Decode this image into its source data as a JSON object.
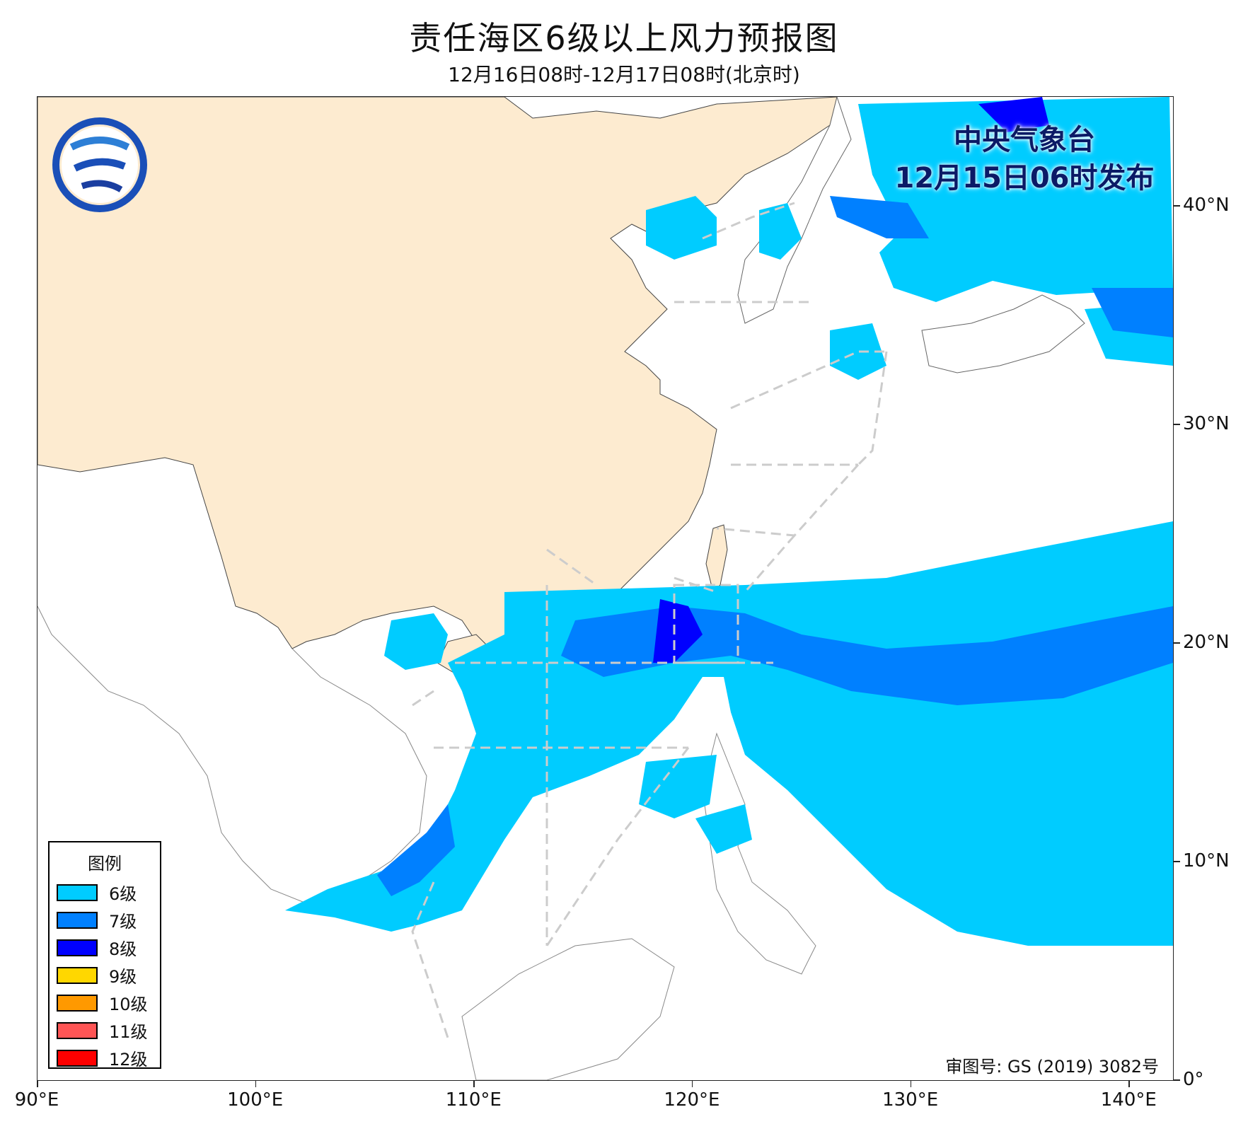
{
  "header": {
    "title": "责任海区6级以上风力预报图",
    "subtitle": "12月16日08时-12月17日08时(北京时)"
  },
  "publisher": {
    "line1": "中央气象台",
    "line2": "12月15日06时发布"
  },
  "logo": {
    "icon": "cma-logo-icon"
  },
  "legend": {
    "title": "图例",
    "items": [
      {
        "label": "6级",
        "color": "#00ccff"
      },
      {
        "label": "7级",
        "color": "#0080ff"
      },
      {
        "label": "8级",
        "color": "#0000ff"
      },
      {
        "label": "9级",
        "color": "#ffd700"
      },
      {
        "label": "10级",
        "color": "#ff9900"
      },
      {
        "label": "11级",
        "color": "#ff5555"
      },
      {
        "label": "12级",
        "color": "#ff0000"
      }
    ]
  },
  "review_number": "审图号: GS (2019) 3082号",
  "axes": {
    "x_ticks": [
      "90°E",
      "100°E",
      "110°E",
      "120°E",
      "130°E",
      "140°E"
    ],
    "y_ticks": [
      "40°N",
      "30°N",
      "20°N",
      "10°N",
      "0°"
    ],
    "x_range": [
      90,
      142
    ],
    "y_range": [
      0,
      45
    ]
  },
  "colors": {
    "land_china": "#fdebd0",
    "sea": "#ffffff",
    "boundary_dash": "#cccccc",
    "river": "#6fa8e6"
  }
}
